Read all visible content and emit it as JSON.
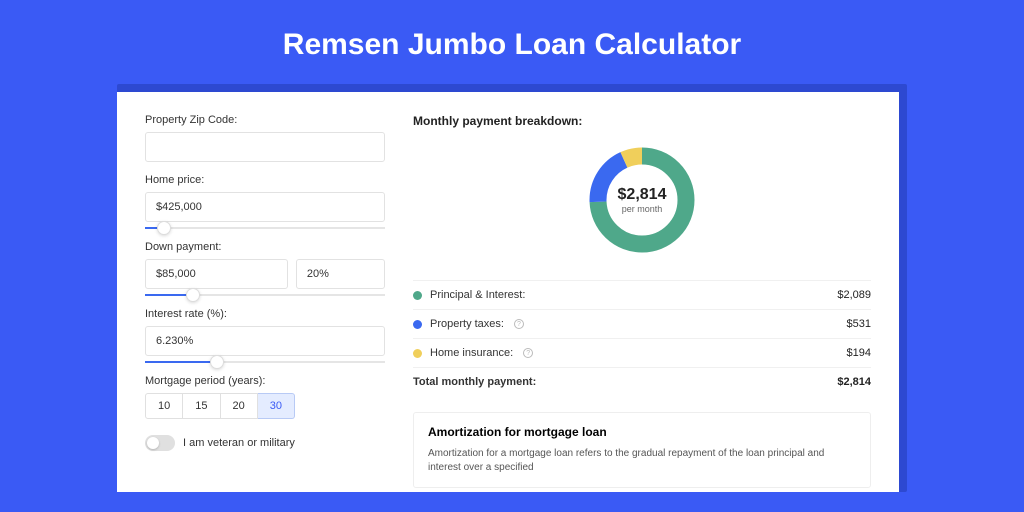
{
  "page": {
    "title": "Remsen Jumbo Loan Calculator",
    "bg_color": "#3a5af5",
    "shadow_color": "#2d49d1",
    "panel_bg": "#ffffff"
  },
  "form": {
    "zip": {
      "label": "Property Zip Code:",
      "value": ""
    },
    "home_price": {
      "label": "Home price:",
      "value": "$425,000",
      "slider_pct": 8
    },
    "down_payment": {
      "label": "Down payment:",
      "amount": "$85,000",
      "percent": "20%",
      "slider_pct": 20
    },
    "interest_rate": {
      "label": "Interest rate (%):",
      "value": "6.230%",
      "slider_pct": 30
    },
    "period": {
      "label": "Mortgage period (years):",
      "options": [
        "10",
        "15",
        "20",
        "30"
      ],
      "active": "30"
    },
    "veteran": {
      "label": "I am veteran or military",
      "on": false
    }
  },
  "breakdown": {
    "title": "Monthly payment breakdown:",
    "donut": {
      "type": "donut",
      "center_amount": "$2,814",
      "center_sub": "per month",
      "stroke_width": 17,
      "radius": 44,
      "bg_color": "#ffffff",
      "segments": [
        {
          "label": "Principal & Interest:",
          "value": "$2,089",
          "color": "#4fa88a",
          "fraction": 0.742,
          "has_info": false
        },
        {
          "label": "Property taxes:",
          "value": "$531",
          "color": "#3a69f0",
          "fraction": 0.189,
          "has_info": true
        },
        {
          "label": "Home insurance:",
          "value": "$194",
          "color": "#f0cf5b",
          "fraction": 0.069,
          "has_info": true
        }
      ]
    },
    "total": {
      "label": "Total monthly payment:",
      "value": "$2,814"
    }
  },
  "amortization": {
    "title": "Amortization for mortgage loan",
    "text": "Amortization for a mortgage loan refers to the gradual repayment of the loan principal and interest over a specified"
  }
}
